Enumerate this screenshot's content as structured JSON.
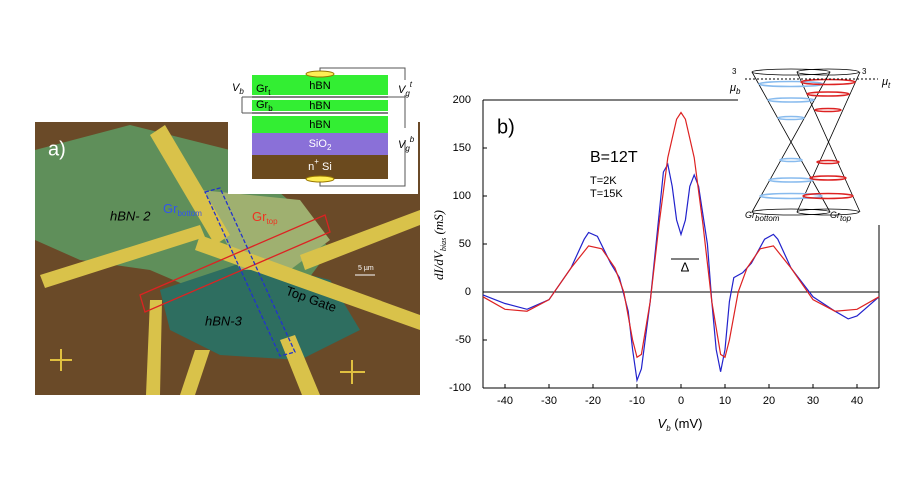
{
  "panel_a": {
    "label": "a)",
    "hbn2": "hBN- 2",
    "hbn3": "hBN-3",
    "gr_bottom": {
      "base": "Gr",
      "sub": "bottom"
    },
    "gr_top": {
      "base": "Gr",
      "sub": "top"
    },
    "top_gate": "Top Gate",
    "scale": "5 µm",
    "stack": {
      "layer1": "hBN",
      "layer2": "hBN",
      "layer3": "hBN",
      "sio2": {
        "base": "SiO",
        "sub": "2"
      },
      "si": {
        "base": "n",
        "sup": "+",
        "rest": " Si"
      },
      "gr_t": {
        "base": "Gr",
        "sub": "t"
      },
      "gr_b": {
        "base": "Gr",
        "sub": "b"
      },
      "vb": {
        "base": "V",
        "sub": "b"
      },
      "vgt": {
        "base": "V",
        "sub": "g",
        "sup": "t"
      },
      "vgb": {
        "base": "V",
        "sub": "g",
        "sup": "b"
      }
    }
  },
  "chart_data": {
    "type": "line",
    "panel_label": "b)",
    "annotation": "B=12T",
    "gap_label": "Δ",
    "xlabel": {
      "base": "V",
      "sub": "b",
      "unit": " (mV)"
    },
    "ylabel": {
      "base": "dI/dV",
      "sub": "bias",
      "unit": " (mS)"
    },
    "xlim": [
      -45,
      45
    ],
    "ylim": [
      -100,
      200
    ],
    "xticks": [
      -40,
      -30,
      -20,
      -10,
      0,
      10,
      20,
      30,
      40
    ],
    "yticks": [
      -100,
      -50,
      0,
      50,
      100,
      150,
      200
    ],
    "series": [
      {
        "name": "T=2K",
        "color": "#2222cc",
        "x": [
          -45,
          -40,
          -35,
          -30,
          -25,
          -22,
          -21,
          -19,
          -16,
          -14,
          -12,
          -11,
          -10,
          -9,
          -7,
          -5,
          -4,
          -3,
          -2,
          -1,
          0,
          1,
          2,
          3,
          4,
          6,
          7,
          8,
          9,
          10,
          11,
          12,
          14,
          16,
          19,
          21,
          22,
          25,
          30,
          35,
          38,
          40,
          45
        ],
        "values": [
          -3,
          -12,
          -18,
          -8,
          25,
          55,
          62,
          58,
          30,
          15,
          -20,
          -60,
          -92,
          -80,
          -10,
          80,
          125,
          133,
          110,
          75,
          60,
          75,
          110,
          122,
          110,
          50,
          -10,
          -60,
          -83,
          -60,
          -10,
          15,
          20,
          30,
          55,
          60,
          55,
          25,
          -5,
          -20,
          -28,
          -25,
          -5
        ]
      },
      {
        "name": "T=15K",
        "color": "#dd2222",
        "x": [
          -45,
          -40,
          -35,
          -30,
          -25,
          -21,
          -18,
          -15,
          -13,
          -11,
          -10,
          -9,
          -7,
          -5,
          -3,
          -1,
          0,
          1,
          3,
          5,
          7,
          9,
          10,
          11,
          13,
          15,
          18,
          21,
          25,
          30,
          35,
          40,
          45
        ],
        "values": [
          -5,
          -18,
          -20,
          -8,
          25,
          48,
          45,
          25,
          0,
          -50,
          -68,
          -65,
          -10,
          70,
          140,
          180,
          187,
          180,
          140,
          70,
          -10,
          -65,
          -68,
          -50,
          0,
          25,
          45,
          48,
          25,
          -8,
          -20,
          -18,
          -5
        ]
      }
    ],
    "inset": {
      "mu_b": {
        "base": "μ",
        "sub": "b"
      },
      "mu_t": {
        "base": "μ",
        "sub": "t"
      },
      "left_3": "3",
      "right_3": "3",
      "gr_bottom": {
        "base": "Gr",
        "sub": "bottom"
      },
      "gr_top": {
        "base": "Gr",
        "sub": "top"
      }
    }
  }
}
